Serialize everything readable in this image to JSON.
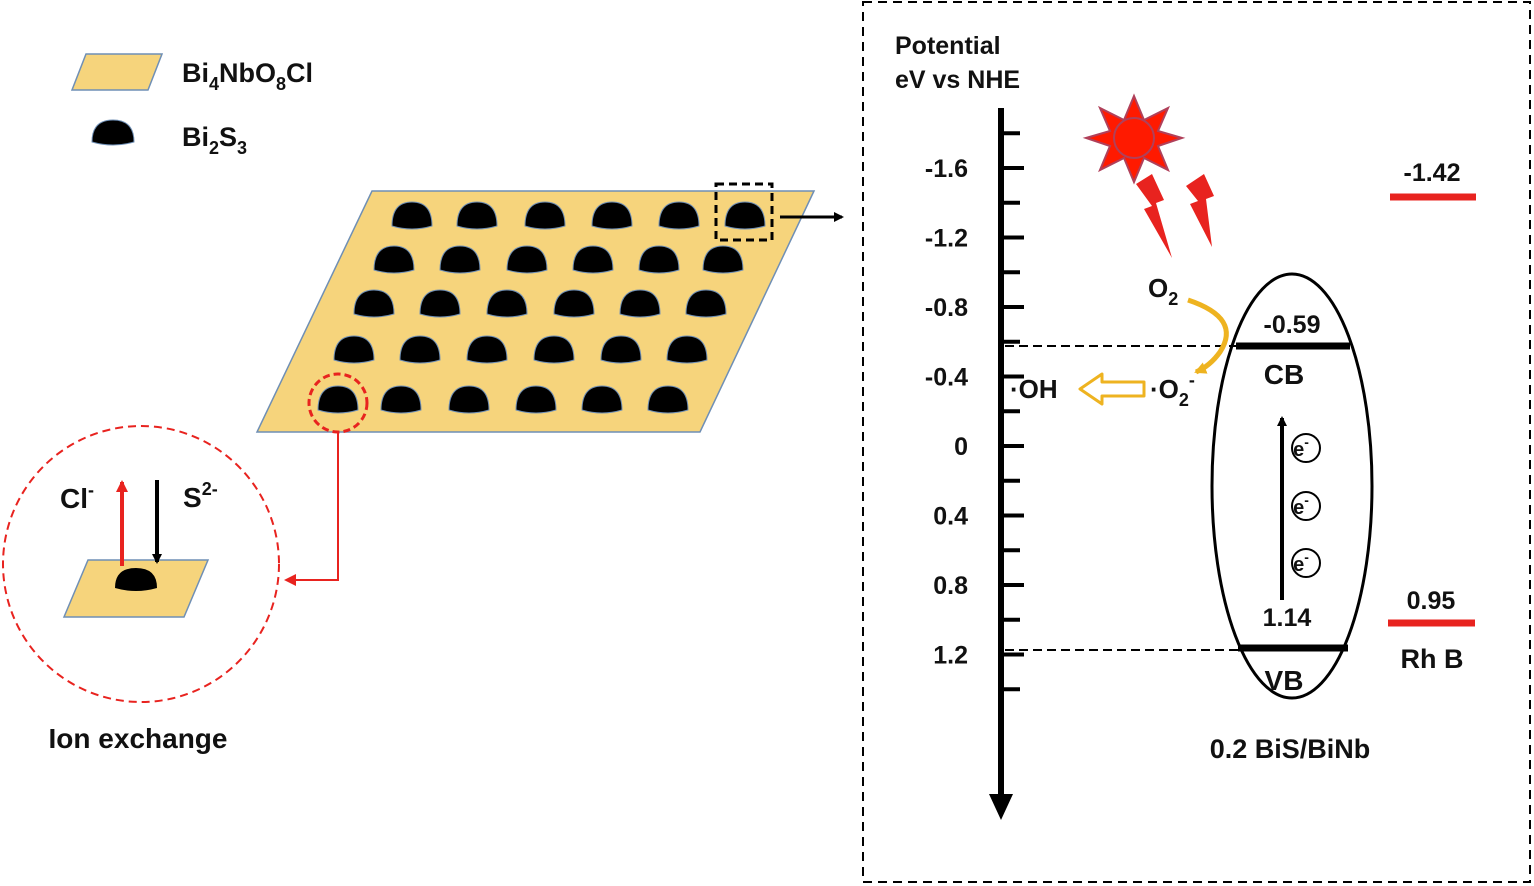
{
  "legend": {
    "sheet_label": {
      "base": "Bi",
      "sub1": "4",
      "mid": "NbO",
      "sub2": "8",
      "tail": "Cl"
    },
    "dot_label": {
      "base": "Bi",
      "sub1": "2",
      "mid": "S",
      "sub2": "3"
    }
  },
  "inset": {
    "cl_label": {
      "base": "Cl",
      "sup": "-"
    },
    "s_label": {
      "base": "S",
      "sup": "2-"
    },
    "caption": "Ion exchange"
  },
  "band_diagram": {
    "axis_title_line1": "Potential",
    "axis_title_line2": "eV vs NHE",
    "ticks": [
      "-1.6",
      "-1.2",
      "-0.8",
      "-0.4",
      "0",
      "0.4",
      "0.8",
      "1.2"
    ],
    "cb_value": "-0.59",
    "cb_label": "CB",
    "vb_value": "1.14",
    "vb_label": "VB",
    "electron": {
      "base": "e",
      "sup": "-"
    },
    "o2_label": {
      "base": "O",
      "sub": "2"
    },
    "superoxide_label": {
      "pre": "·O",
      "sub": "2",
      "sup": "-"
    },
    "hydroxyl_label": "·OH",
    "sample_label": "0.2 BiS/BiNb",
    "rhb_top_value": "-1.42",
    "rhb_bottom_value": "0.95",
    "rhb_label": "Rh B"
  },
  "colors": {
    "sheet_fill": "#f6d47c",
    "sheet_stroke": "#6f8fb5",
    "particle": "#000000",
    "red": "#e8231f",
    "arrow_yellow": "#eeb320",
    "sun_fill": "#ff1a00",
    "sun_rays": "#b0405a"
  }
}
